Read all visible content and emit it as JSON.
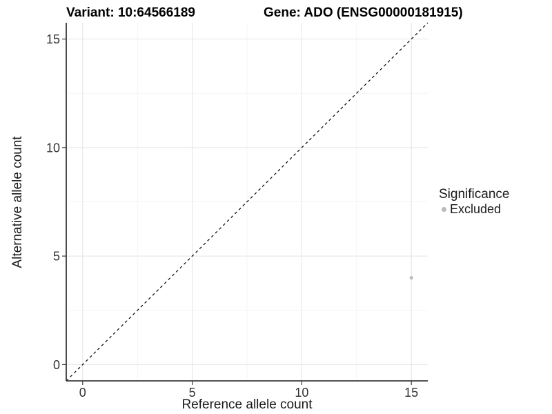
{
  "titles": {
    "left": "Variant: 10:64566189",
    "right": "Gene: ADO (ENSG00000181915)"
  },
  "chart_data": {
    "type": "scatter",
    "title_left": "Variant: 10:64566189",
    "title_right": "Gene: ADO (ENSG00000181915)",
    "xlabel": "Reference allele count",
    "ylabel": "Alternative allele count",
    "xlim": [
      -0.75,
      15.75
    ],
    "ylim": [
      -0.75,
      15.75
    ],
    "xticks": [
      0,
      5,
      10,
      15
    ],
    "yticks": [
      0,
      5,
      10,
      15
    ],
    "xminor": [
      2.5,
      7.5,
      12.5
    ],
    "yminor": [
      2.5,
      7.5,
      12.5
    ],
    "grid": "major+minor",
    "background": "#ffffff",
    "identity_line": {
      "slope": 1,
      "intercept": 0,
      "style": "dashed",
      "color": "#000000"
    },
    "series": [
      {
        "name": "Excluded",
        "color": "#b9b9b9",
        "point_radius": 2.5,
        "points": [
          {
            "x": 15,
            "y": 4
          }
        ]
      }
    ],
    "legend": {
      "title": "Significance",
      "position": "right",
      "items": [
        {
          "label": "Excluded",
          "color": "#b9b9b9"
        }
      ]
    }
  }
}
